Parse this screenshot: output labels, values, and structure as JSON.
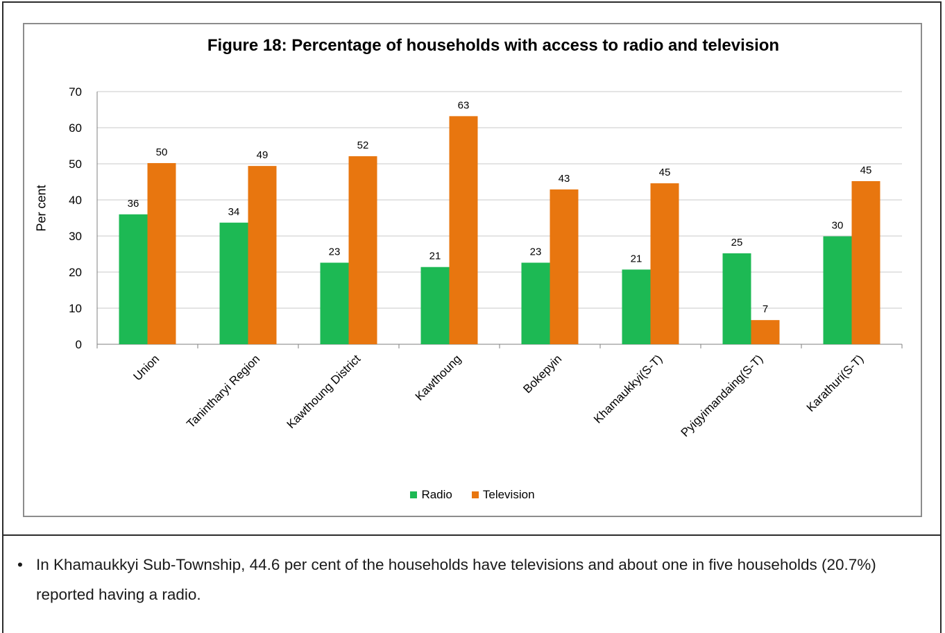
{
  "chart_data": {
    "type": "bar",
    "title": "Figure 18: Percentage of households with access to radio and television",
    "ylabel": "Per cent",
    "xlabel": "",
    "ylim": [
      0,
      70
    ],
    "yticks": [
      0,
      10,
      20,
      30,
      40,
      50,
      60,
      70
    ],
    "grid": true,
    "legend_position": "bottom",
    "categories": [
      "Union",
      "Tanintharyi Region",
      "Kawthoung District",
      "Kawthoung",
      "Bokepyin",
      "Khamaukkyi(S-T)",
      "Pyigyimandaing(S-T)",
      "Karathuri(S-T)"
    ],
    "series": [
      {
        "name": "Radio",
        "color": "#1db954",
        "values": [
          36,
          34,
          23,
          21,
          23,
          21,
          25,
          30
        ],
        "plot_values": [
          36,
          33.7,
          22.6,
          21.4,
          22.6,
          20.7,
          25.2,
          29.9
        ]
      },
      {
        "name": "Television",
        "color": "#e8760f",
        "values": [
          50,
          49,
          52,
          63,
          43,
          45,
          7,
          45
        ],
        "plot_values": [
          50.2,
          49.4,
          52.1,
          63.2,
          42.9,
          44.6,
          6.7,
          45.2
        ]
      }
    ]
  },
  "note": {
    "bullet": "•",
    "text": "In Khamaukkyi Sub-Township, 44.6 per cent of the households have televisions and about one in five households (20.7%) reported having a radio."
  }
}
